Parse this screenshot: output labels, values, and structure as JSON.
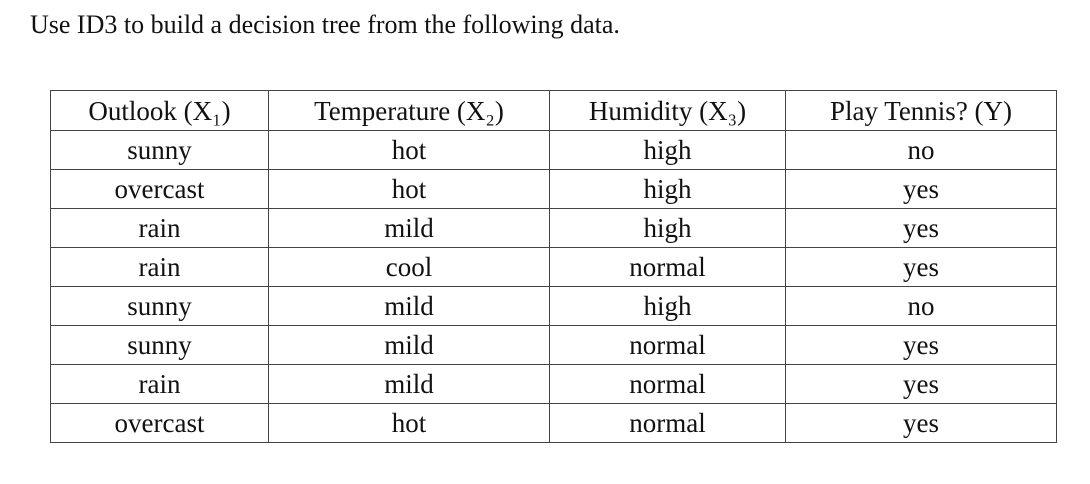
{
  "prompt": "Use ID3 to build a decision tree from the following data.",
  "table": {
    "header": [
      "Outlook (X₁)",
      "Temperature (X₂)",
      "Humidity (X₃)",
      "Play Tennis? (Y)"
    ],
    "rows": [
      [
        "sunny",
        "hot",
        "high",
        "no"
      ],
      [
        "overcast",
        "hot",
        "high",
        "yes"
      ],
      [
        "rain",
        "mild",
        "high",
        "yes"
      ],
      [
        "rain",
        "cool",
        "normal",
        "yes"
      ],
      [
        "sunny",
        "mild",
        "high",
        "no"
      ],
      [
        "sunny",
        "mild",
        "normal",
        "yes"
      ],
      [
        "rain",
        "mild",
        "normal",
        "yes"
      ],
      [
        "overcast",
        "hot",
        "normal",
        "yes"
      ]
    ]
  }
}
